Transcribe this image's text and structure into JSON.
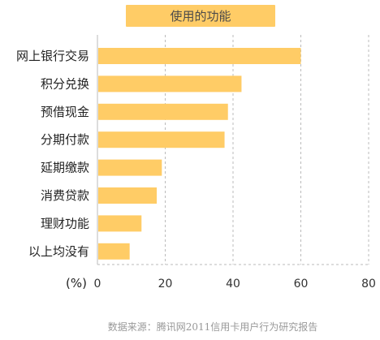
{
  "chart_data": {
    "type": "bar",
    "orientation": "horizontal",
    "title": "使用的功能",
    "categories": [
      "网上银行交易",
      "积分兑换",
      "预借现金",
      "分期付款",
      "延期缴款",
      "消费贷款",
      "理财功能",
      "以上均没有"
    ],
    "values": [
      60,
      42.5,
      38.5,
      37.5,
      19,
      17.5,
      13,
      9.5
    ],
    "unit_label": "(%)",
    "xlim": [
      0,
      80
    ],
    "xticks": [
      0,
      20,
      40,
      60,
      80
    ],
    "grid": "dashed vertical",
    "bar_color": "#FFCC66",
    "title_box_color": "#FFCC66",
    "source": "数据来源：腾讯网2011信用卡用户行为研究报告"
  }
}
